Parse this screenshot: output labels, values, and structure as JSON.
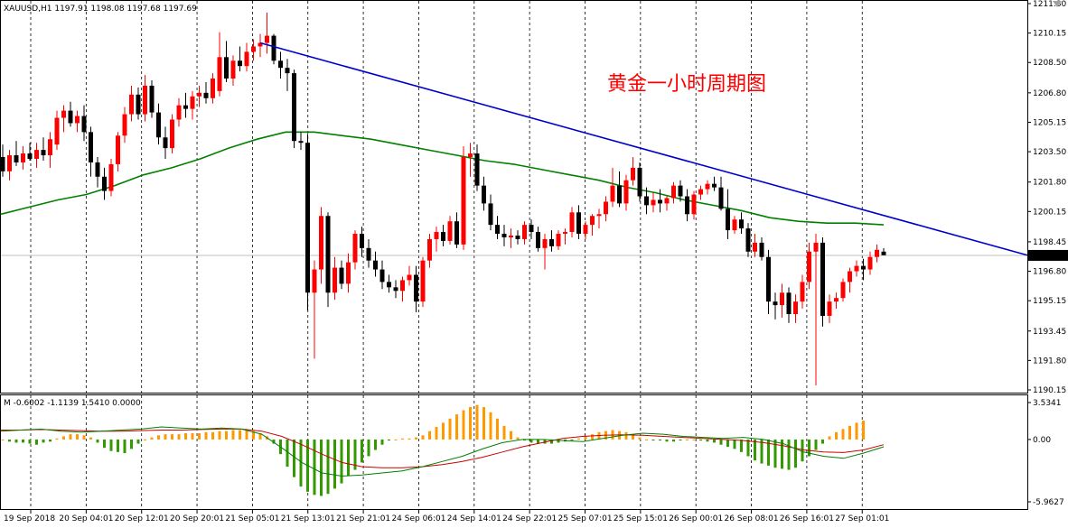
{
  "window": {
    "symbol_line": "XAUUSD,H1  1197.91 1198.08 1197.68 1197.69",
    "close_icon": "triangle-down-icon"
  },
  "chart_data": {
    "type": "candlestick",
    "symbol": "XAUUSD",
    "timeframe": "H1",
    "ohlc_header": {
      "open": 1197.91,
      "high": 1198.08,
      "low": 1197.68,
      "close": 1197.69
    },
    "annotation": "黄金一小时周期图",
    "price_ticks": [
      "1211.80",
      "1210.15",
      "1208.50",
      "1206.80",
      "1205.15",
      "1203.50",
      "1201.80",
      "1200.15",
      "1198.45",
      "1196.80",
      "1195.15",
      "1193.45",
      "1191.80",
      "1190.15"
    ],
    "price_range": [
      1190.15,
      1211.8
    ],
    "current_price": "1197.69",
    "time_labels": [
      "19 Sep 2018",
      "20 Sep 04:01",
      "20 Sep 12:01",
      "20 Sep 20:01",
      "21 Sep 05:01",
      "21 Sep 13:01",
      "21 Sep 21:01",
      "24 Sep 06:01",
      "24 Sep 14:01",
      "24 Sep 22:01",
      "25 Sep 07:01",
      "25 Sep 15:01",
      "26 Sep 00:01",
      "26 Sep 08:01",
      "26 Sep 16:01",
      "27 Sep 01:01"
    ],
    "candles": [
      [
        1203.2,
        1203.9,
        1202.1,
        1202.4
      ],
      [
        1202.4,
        1203.6,
        1201.9,
        1203.3
      ],
      [
        1203.3,
        1204.1,
        1202.7,
        1202.9
      ],
      [
        1202.9,
        1203.8,
        1202.5,
        1203.4
      ],
      [
        1203.4,
        1204.0,
        1203.0,
        1203.1
      ],
      [
        1203.1,
        1204.0,
        1202.6,
        1203.6
      ],
      [
        1203.6,
        1204.3,
        1203.0,
        1203.3
      ],
      [
        1203.3,
        1204.6,
        1202.6,
        1204.2
      ],
      [
        1203.9,
        1205.8,
        1203.6,
        1205.4
      ],
      [
        1205.4,
        1206.1,
        1204.6,
        1205.8
      ],
      [
        1205.8,
        1206.3,
        1204.9,
        1205.1
      ],
      [
        1205.1,
        1205.8,
        1204.6,
        1205.5
      ],
      [
        1205.5,
        1206.1,
        1204.1,
        1204.6
      ],
      [
        1204.6,
        1204.9,
        1202.1,
        1202.9
      ],
      [
        1202.9,
        1203.2,
        1201.5,
        1202.1
      ],
      [
        1202.1,
        1202.6,
        1200.8,
        1201.3
      ],
      [
        1201.3,
        1203.1,
        1201.0,
        1202.8
      ],
      [
        1202.8,
        1204.6,
        1202.4,
        1204.4
      ],
      [
        1204.4,
        1206.0,
        1204.0,
        1205.6
      ],
      [
        1205.6,
        1207.2,
        1205.2,
        1206.7
      ],
      [
        1206.7,
        1207.1,
        1205.3,
        1205.6
      ],
      [
        1205.6,
        1207.8,
        1205.2,
        1207.2
      ],
      [
        1207.2,
        1207.5,
        1205.4,
        1205.7
      ],
      [
        1205.7,
        1206.2,
        1203.9,
        1204.3
      ],
      [
        1204.3,
        1204.9,
        1203.1,
        1203.7
      ],
      [
        1203.7,
        1205.6,
        1203.4,
        1205.3
      ],
      [
        1205.3,
        1206.5,
        1204.9,
        1206.1
      ],
      [
        1206.1,
        1206.8,
        1205.4,
        1205.9
      ],
      [
        1205.9,
        1206.9,
        1205.3,
        1206.6
      ],
      [
        1206.6,
        1207.2,
        1206.0,
        1206.8
      ],
      [
        1206.8,
        1207.4,
        1206.2,
        1206.5
      ],
      [
        1206.5,
        1207.9,
        1206.2,
        1207.6
      ],
      [
        1206.9,
        1210.2,
        1206.6,
        1208.8
      ],
      [
        1208.8,
        1209.7,
        1207.4,
        1207.6
      ],
      [
        1207.6,
        1208.9,
        1207.2,
        1208.6
      ],
      [
        1208.6,
        1209.4,
        1208.0,
        1208.3
      ],
      [
        1208.3,
        1209.6,
        1208.0,
        1209.1
      ],
      [
        1209.1,
        1209.8,
        1208.6,
        1209.4
      ],
      [
        1209.4,
        1210.1,
        1208.8,
        1209.6
      ],
      [
        1209.6,
        1211.3,
        1209.0,
        1210.0
      ],
      [
        1210.0,
        1210.1,
        1208.4,
        1208.6
      ],
      [
        1208.6,
        1209.1,
        1207.6,
        1208.2
      ],
      [
        1208.2,
        1208.7,
        1206.9,
        1207.9
      ],
      [
        1207.9,
        1208.1,
        1203.7,
        1204.1
      ],
      [
        1204.1,
        1204.6,
        1203.6,
        1204.0
      ],
      [
        1204.0,
        1204.5,
        1194.6,
        1195.6
      ],
      [
        1195.6,
        1197.4,
        1191.9,
        1196.9
      ],
      [
        1196.9,
        1200.4,
        1196.1,
        1199.9
      ],
      [
        1199.9,
        1200.1,
        1194.8,
        1195.6
      ],
      [
        1195.6,
        1197.6,
        1195.2,
        1197.0
      ],
      [
        1197.0,
        1197.4,
        1195.8,
        1196.1
      ],
      [
        1196.1,
        1197.8,
        1195.6,
        1197.3
      ],
      [
        1197.3,
        1199.1,
        1196.9,
        1198.9
      ],
      [
        1198.9,
        1199.3,
        1197.6,
        1198.1
      ],
      [
        1198.1,
        1198.6,
        1197.0,
        1197.4
      ],
      [
        1197.4,
        1197.9,
        1196.5,
        1196.9
      ],
      [
        1196.9,
        1197.4,
        1195.8,
        1196.2
      ],
      [
        1196.2,
        1196.6,
        1195.6,
        1195.9
      ],
      [
        1195.9,
        1196.3,
        1195.3,
        1195.7
      ],
      [
        1195.7,
        1196.5,
        1195.1,
        1196.3
      ],
      [
        1196.3,
        1197.1,
        1196.0,
        1196.6
      ],
      [
        1196.6,
        1197.1,
        1194.5,
        1195.1
      ],
      [
        1195.1,
        1197.6,
        1194.8,
        1197.4
      ],
      [
        1197.4,
        1198.9,
        1197.0,
        1198.6
      ],
      [
        1198.6,
        1199.3,
        1197.9,
        1199.0
      ],
      [
        1199.0,
        1199.4,
        1198.2,
        1198.5
      ],
      [
        1198.5,
        1199.9,
        1198.3,
        1199.6
      ],
      [
        1199.6,
        1200.1,
        1198.1,
        1198.3
      ],
      [
        1198.3,
        1203.8,
        1198.0,
        1203.2
      ],
      [
        1203.2,
        1204.0,
        1202.1,
        1203.4
      ],
      [
        1203.4,
        1203.9,
        1201.3,
        1201.6
      ],
      [
        1201.6,
        1202.1,
        1200.2,
        1200.6
      ],
      [
        1200.6,
        1201.1,
        1199.1,
        1199.4
      ],
      [
        1199.4,
        1199.9,
        1198.6,
        1198.9
      ],
      [
        1198.9,
        1199.4,
        1198.2,
        1198.7
      ],
      [
        1198.7,
        1199.2,
        1198.1,
        1198.8
      ],
      [
        1198.8,
        1199.1,
        1198.3,
        1198.6
      ],
      [
        1198.6,
        1199.6,
        1198.3,
        1199.4
      ],
      [
        1199.4,
        1199.7,
        1198.6,
        1199.0
      ],
      [
        1199.0,
        1199.3,
        1197.9,
        1198.1
      ],
      [
        1198.1,
        1198.9,
        1196.9,
        1198.6
      ],
      [
        1198.6,
        1199.1,
        1197.9,
        1198.2
      ],
      [
        1198.2,
        1199.1,
        1198.0,
        1198.9
      ],
      [
        1198.9,
        1199.2,
        1198.3,
        1199.0
      ],
      [
        1199.0,
        1200.4,
        1198.7,
        1200.1
      ],
      [
        1200.1,
        1200.5,
        1198.6,
        1198.9
      ],
      [
        1198.9,
        1199.6,
        1198.6,
        1199.4
      ],
      [
        1199.4,
        1200.0,
        1198.8,
        1199.9
      ],
      [
        1199.9,
        1200.3,
        1199.2,
        1200.0
      ],
      [
        1200.0,
        1201.0,
        1199.6,
        1200.7
      ],
      [
        1200.7,
        1202.6,
        1200.4,
        1201.6
      ],
      [
        1201.6,
        1202.4,
        1200.4,
        1200.6
      ],
      [
        1200.6,
        1202.2,
        1200.2,
        1201.9
      ],
      [
        1201.9,
        1203.2,
        1201.6,
        1202.6
      ],
      [
        1202.6,
        1202.9,
        1200.7,
        1201.0
      ],
      [
        1201.0,
        1201.5,
        1200.0,
        1200.5
      ],
      [
        1200.5,
        1201.2,
        1200.1,
        1200.8
      ],
      [
        1200.8,
        1201.4,
        1200.1,
        1200.6
      ],
      [
        1200.6,
        1201.0,
        1200.2,
        1200.9
      ],
      [
        1200.9,
        1201.8,
        1200.6,
        1201.6
      ],
      [
        1201.6,
        1201.9,
        1200.7,
        1201.0
      ],
      [
        1201.0,
        1201.4,
        1199.6,
        1200.0
      ],
      [
        1200.0,
        1201.3,
        1199.7,
        1201.1
      ],
      [
        1201.1,
        1201.6,
        1200.8,
        1201.4
      ],
      [
        1201.4,
        1201.9,
        1201.1,
        1201.7
      ],
      [
        1201.7,
        1202.1,
        1201.3,
        1201.5
      ],
      [
        1201.5,
        1202.1,
        1200.2,
        1200.3
      ],
      [
        1200.3,
        1201.4,
        1198.6,
        1199.1
      ],
      [
        1199.1,
        1199.9,
        1198.9,
        1199.7
      ],
      [
        1199.7,
        1200.1,
        1198.9,
        1199.2
      ],
      [
        1199.2,
        1199.5,
        1197.6,
        1197.9
      ],
      [
        1197.9,
        1198.9,
        1197.6,
        1198.4
      ],
      [
        1198.4,
        1198.7,
        1197.4,
        1197.6
      ],
      [
        1197.6,
        1198.0,
        1194.4,
        1195.1
      ],
      [
        1195.1,
        1195.6,
        1194.1,
        1194.9
      ],
      [
        1194.9,
        1196.1,
        1194.2,
        1195.6
      ],
      [
        1195.6,
        1195.9,
        1193.9,
        1194.4
      ],
      [
        1194.4,
        1195.5,
        1193.9,
        1195.1
      ],
      [
        1195.1,
        1196.6,
        1194.7,
        1196.2
      ],
      [
        1196.2,
        1198.4,
        1195.8,
        1197.9
      ],
      [
        1197.9,
        1198.9,
        1190.4,
        1198.4
      ],
      [
        1198.4,
        1198.7,
        1193.7,
        1194.3
      ],
      [
        1194.3,
        1195.5,
        1193.9,
        1195.1
      ],
      [
        1195.1,
        1195.6,
        1194.7,
        1195.3
      ],
      [
        1195.3,
        1196.4,
        1195.1,
        1196.2
      ],
      [
        1196.2,
        1197.0,
        1195.6,
        1196.8
      ],
      [
        1196.8,
        1197.4,
        1196.5,
        1197.1
      ],
      [
        1197.1,
        1197.5,
        1196.3,
        1196.9
      ],
      [
        1196.9,
        1197.9,
        1196.6,
        1197.6
      ],
      [
        1197.6,
        1198.3,
        1197.3,
        1198.0
      ],
      [
        1197.9,
        1198.1,
        1197.7,
        1197.7
      ]
    ],
    "moving_average": [
      1200.0,
      1200.4,
      1200.8,
      1201.1,
      1201.6,
      1202.2,
      1202.6,
      1203.1,
      1203.7,
      1204.2,
      1204.6,
      1204.6,
      1204.4,
      1204.2,
      1203.9,
      1203.6,
      1203.3,
      1203.0,
      1202.8,
      1202.5,
      1202.2,
      1201.9,
      1201.5,
      1201.2,
      1200.8,
      1200.5,
      1200.2,
      1199.8,
      1199.6,
      1199.5,
      1199.5,
      1199.4
    ],
    "trendline": {
      "from": {
        "bar": 38,
        "price": 1209.6
      },
      "to": {
        "bar": "right-edge",
        "price": 1197.7
      }
    },
    "macd": {
      "label": "M -0.6002 -1.1139 1.5410 0.0000",
      "ticks": [
        "3.5341",
        "0.00",
        "-5.9627"
      ],
      "range": [
        -5.9627,
        3.5341
      ],
      "histogram": [
        0.0,
        -0.2,
        -0.3,
        -0.3,
        -0.4,
        -0.5,
        -0.3,
        -0.2,
        0.1,
        0.3,
        0.5,
        0.5,
        0.4,
        0.2,
        -0.3,
        -0.8,
        -1.1,
        -1.2,
        -1.3,
        -0.9,
        -0.4,
        0.0,
        0.2,
        0.4,
        0.5,
        0.5,
        0.5,
        0.6,
        0.6,
        0.6,
        0.7,
        0.7,
        0.8,
        0.8,
        0.9,
        0.9,
        0.9,
        0.8,
        0.6,
        0.3,
        -0.4,
        -1.4,
        -2.6,
        -3.6,
        -4.5,
        -5.0,
        -5.3,
        -5.4,
        -5.2,
        -4.7,
        -4.2,
        -3.5,
        -2.9,
        -2.2,
        -1.6,
        -1.0,
        -0.5,
        -0.1,
        0.0,
        0.1,
        0.1,
        0.2,
        0.4,
        0.8,
        1.2,
        1.6,
        2.0,
        2.4,
        2.8,
        3.1,
        3.3,
        3.1,
        2.6,
        2.0,
        1.3,
        0.8,
        0.2,
        -0.1,
        -0.3,
        -0.4,
        -0.4,
        -0.4,
        -0.3,
        -0.2,
        -0.1,
        0.1,
        0.3,
        0.5,
        0.7,
        0.8,
        0.9,
        0.8,
        0.7,
        0.5,
        0.2,
        0.0,
        -0.1,
        -0.1,
        -0.2,
        -0.2,
        -0.1,
        0.0,
        0.0,
        -0.1,
        -0.2,
        -0.3,
        -0.5,
        -0.7,
        -0.9,
        -1.2,
        -1.6,
        -2.0,
        -2.3,
        -2.5,
        -2.7,
        -2.8,
        -2.9,
        -2.7,
        -2.1,
        -1.6,
        -1.0,
        -0.4,
        0.3,
        0.7,
        1.0,
        1.3,
        1.6,
        1.8
      ],
      "signal_line": [
        0.9,
        0.9,
        0.95,
        0.9,
        0.85,
        0.8,
        0.8,
        0.85,
        0.9,
        0.9,
        0.95,
        1.0,
        1.0,
        0.8,
        0.3,
        -0.5,
        -1.4,
        -2.2,
        -2.6,
        -2.7,
        -2.7,
        -2.6,
        -2.4,
        -2.1,
        -1.7,
        -1.2,
        -0.7,
        -0.3,
        0.1,
        0.3,
        0.4,
        0.45,
        0.4,
        0.3,
        0.2,
        0.1,
        0.0,
        -0.1,
        -0.3,
        -0.6,
        -1.0,
        -1.2,
        -1.25,
        -1.0,
        -0.5
      ],
      "main_line": [
        0.8,
        0.9,
        1.0,
        0.8,
        0.7,
        0.8,
        0.9,
        1.0,
        1.2,
        1.1,
        1.0,
        1.1,
        1.0,
        0.5,
        -0.8,
        -2.2,
        -3.2,
        -3.5,
        -3.4,
        -3.2,
        -3.0,
        -2.6,
        -2.1,
        -1.6,
        -0.9,
        -0.3,
        0.0,
        0.0,
        -0.1,
        -0.2,
        0.1,
        0.4,
        0.6,
        0.5,
        0.3,
        0.2,
        0.1,
        0.2,
        0.0,
        -0.4,
        -1.2,
        -1.6,
        -1.8,
        -1.3,
        -0.7
      ]
    },
    "colors": {
      "bull_candle": "#ff0000",
      "bear_candle": "#000000",
      "moving_average": "#008000",
      "trendline": "#0000cc",
      "annotation": "#ff0000",
      "macd_positive": "#ff9900",
      "macd_negative": "#339900",
      "macd_signal": "#cc0000",
      "macd_main": "#008000",
      "grid": "#000000",
      "price_tag_bg": "#000000",
      "price_tag_fg": "#ffffff"
    }
  }
}
